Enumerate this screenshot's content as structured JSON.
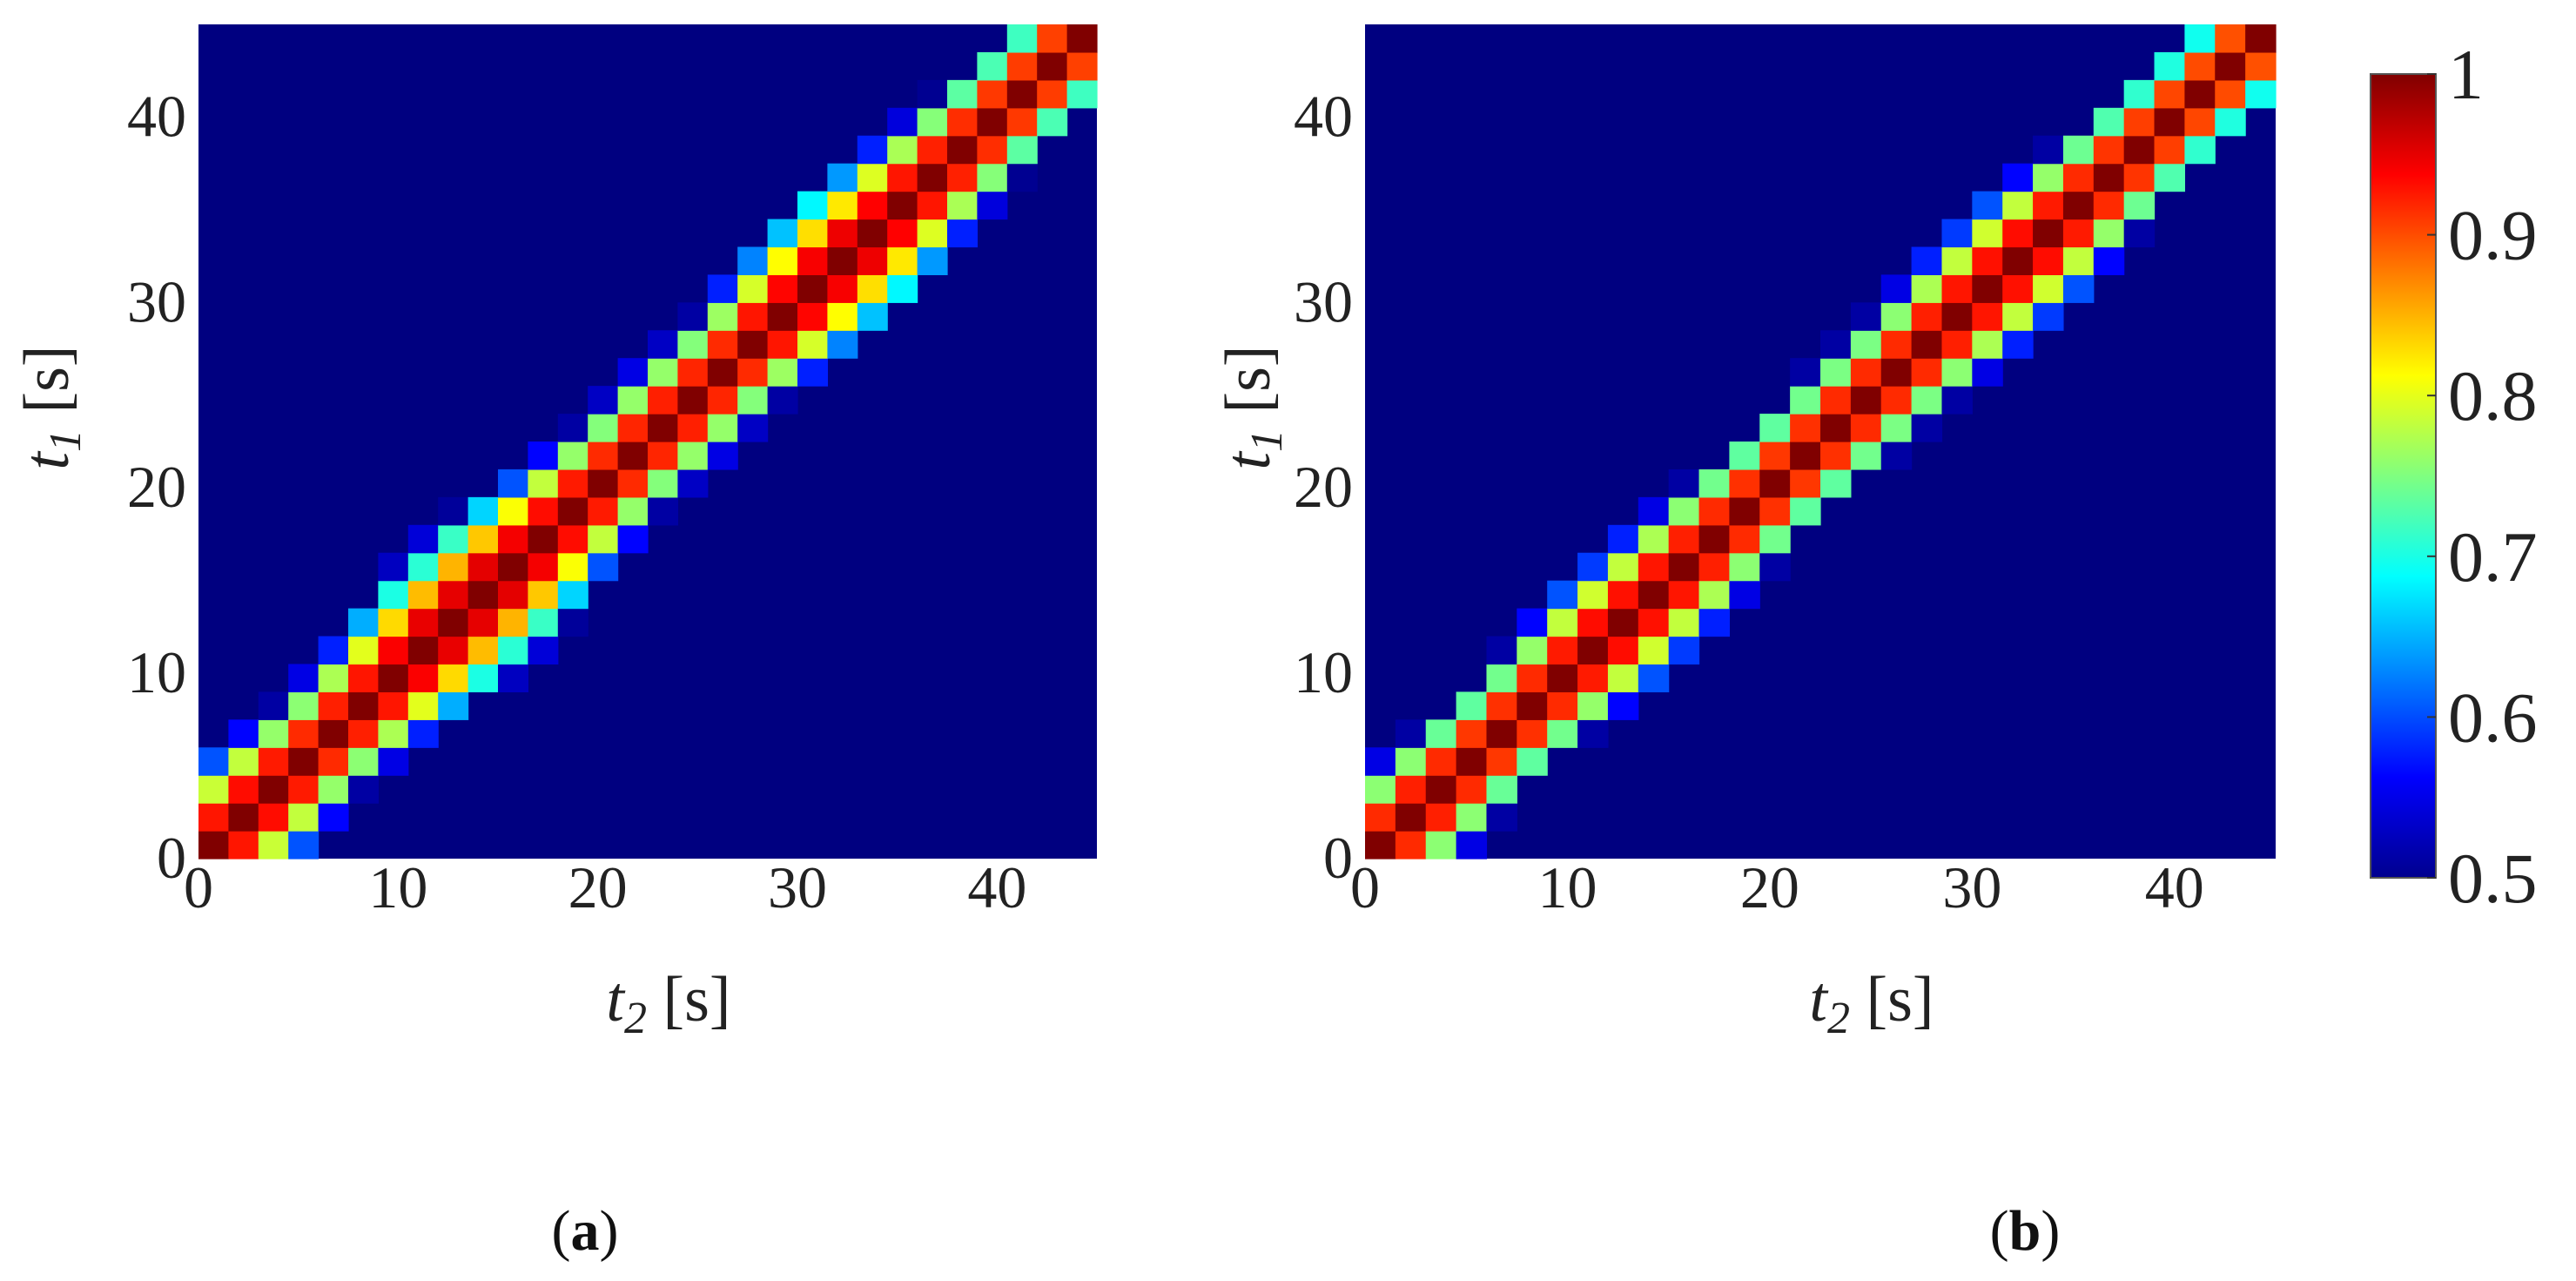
{
  "chart_data": [
    {
      "panel": "a",
      "panel_label_open": "(",
      "panel_label_letter": "a",
      "panel_label_close": ")",
      "type": "heatmap",
      "xlabel": {
        "var": "t",
        "sub": "2",
        "unit": " [s]"
      },
      "ylabel": {
        "var": "t",
        "sub": "1",
        "unit": " [s]"
      },
      "xlim": [
        0,
        45
      ],
      "ylim": [
        0,
        45
      ],
      "x_ticks": [
        0,
        10,
        20,
        30,
        40
      ],
      "y_ticks": [
        0,
        10,
        20,
        30,
        40
      ],
      "x_tick_labels": [
        "0",
        "10",
        "20",
        "30",
        "40"
      ],
      "y_tick_labels": [
        "0",
        "10",
        "20",
        "30",
        "40"
      ],
      "grid": false,
      "colormap": "jet",
      "clim": [
        0.5,
        1
      ],
      "cell_size": 1.5,
      "band_profile": [
        [
          0,
          4.8
        ],
        [
          3,
          5.2
        ],
        [
          6,
          4.6
        ],
        [
          9,
          5.0
        ],
        [
          12,
          6.2
        ],
        [
          15,
          6.4
        ],
        [
          18,
          5.2
        ],
        [
          21,
          4.6
        ],
        [
          24,
          4.8
        ],
        [
          27,
          4.6
        ],
        [
          30,
          5.4
        ],
        [
          33,
          6.0
        ],
        [
          36,
          5.0
        ],
        [
          40,
          4.4
        ],
        [
          45,
          4.2
        ]
      ],
      "values_description_source": "symmetric similarity matrix, value 1 on the diagonal t1 = t2"
    },
    {
      "panel": "b",
      "panel_label_open": "(",
      "panel_label_letter": "b",
      "panel_label_close": ")",
      "type": "heatmap",
      "xlabel": {
        "var": "t",
        "sub": "2",
        "unit": " [s]"
      },
      "ylabel": {
        "var": "t",
        "sub": "1",
        "unit": " [s]"
      },
      "xlim": [
        0,
        45
      ],
      "ylim": [
        0,
        45
      ],
      "x_ticks": [
        0,
        10,
        20,
        30,
        40
      ],
      "y_ticks": [
        0,
        10,
        20,
        30,
        40
      ],
      "x_tick_labels": [
        "0",
        "10",
        "20",
        "30",
        "40"
      ],
      "y_tick_labels": [
        "0",
        "10",
        "20",
        "30",
        "40"
      ],
      "grid": false,
      "colormap": "jet",
      "clim": [
        0.5,
        1
      ],
      "cell_size": 1.5,
      "band_profile": [
        [
          0,
          4.4
        ],
        [
          3,
          4.8
        ],
        [
          6,
          4.4
        ],
        [
          9,
          4.6
        ],
        [
          12,
          5.2
        ],
        [
          15,
          5.0
        ],
        [
          18,
          4.6
        ],
        [
          21,
          4.4
        ],
        [
          24,
          4.6
        ],
        [
          27,
          4.6
        ],
        [
          30,
          5.0
        ],
        [
          33,
          5.2
        ],
        [
          36,
          4.6
        ],
        [
          40,
          4.2
        ],
        [
          45,
          4.0
        ]
      ],
      "values_description_source": "symmetric similarity matrix, value 1 on the diagonal t1 = t2"
    }
  ],
  "colorbar": {
    "colormap": "jet",
    "range": [
      0.5,
      1
    ],
    "ticks": [
      0.5,
      0.6,
      0.7,
      0.8,
      0.9,
      1
    ],
    "tick_labels": [
      "0.5",
      "0.6",
      "0.7",
      "0.8",
      "0.9",
      "1"
    ]
  }
}
